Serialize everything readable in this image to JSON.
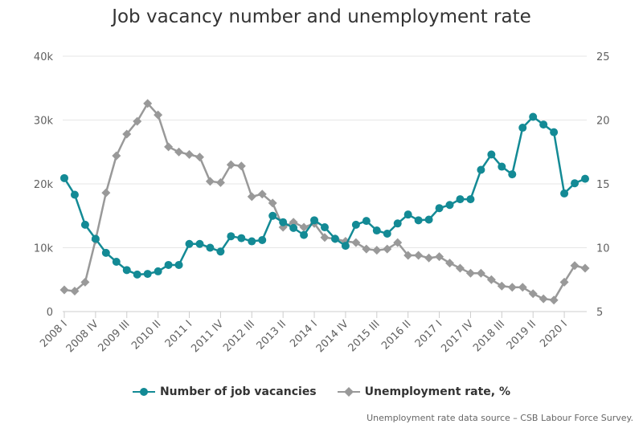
{
  "title": "Job vacancy number and unemployment rate",
  "source_note": "Unemployment rate data source – CSB Labour Force Survey.",
  "colors": {
    "vacancies": "#138a95",
    "unemployment": "#999999",
    "grid": "#e6e6e6"
  },
  "chart_data": {
    "type": "line",
    "title": "Job vacancy number and unemployment rate",
    "x_tick_labels": [
      "2008 I",
      "2008 IV",
      "2009 III",
      "2010 II",
      "2011 I",
      "2011 IV",
      "2012 III",
      "2013 II",
      "2014 I",
      "2014 IV",
      "2015 III",
      "2016 II",
      "2017 I",
      "2017 IV",
      "2018 III",
      "2019 II",
      "2020 I"
    ],
    "left_axis": {
      "ylim": [
        0,
        40000
      ],
      "ticks": [
        "0",
        "10k",
        "20k",
        "30k",
        "40k"
      ]
    },
    "right_axis": {
      "ylim": [
        5,
        25
      ],
      "ticks": [
        "5",
        "10",
        "15",
        "20",
        "25"
      ]
    },
    "grid": true,
    "legend_placement": "bottom-center",
    "series": [
      {
        "name": "Number of job vacancies",
        "axis": "left",
        "marker": "circle",
        "values": [
          20900,
          18300,
          13600,
          11400,
          9200,
          7800,
          6500,
          5800,
          5900,
          6300,
          7300,
          7300,
          10600,
          10600,
          10000,
          9400,
          11800,
          11500,
          11000,
          11200,
          15000,
          14000,
          13100,
          12000,
          14300,
          13200,
          11400,
          10300,
          13600,
          14200,
          12700,
          12200,
          13800,
          15200,
          14300,
          14400,
          16200,
          16700,
          17600,
          17600,
          22200,
          24600,
          22700,
          21500,
          28800,
          30500,
          29300,
          28100,
          18500,
          20100,
          20800
        ]
      },
      {
        "name": "Unemployment rate, %",
        "axis": "right",
        "marker": "diamond",
        "values": [
          6.7,
          6.6,
          7.3,
          10.6,
          14.3,
          17.2,
          18.9,
          19.9,
          21.3,
          20.4,
          17.9,
          17.5,
          17.3,
          17.1,
          15.2,
          15.1,
          16.5,
          16.4,
          14.0,
          14.2,
          13.5,
          11.6,
          12.0,
          11.6,
          11.9,
          10.8,
          10.7,
          10.5,
          10.4,
          9.9,
          9.8,
          9.9,
          10.4,
          9.4,
          9.4,
          9.2,
          9.3,
          8.8,
          8.4,
          8.0,
          8.0,
          7.5,
          7.0,
          6.9,
          6.9,
          6.4,
          6.0,
          5.9,
          7.3,
          8.6,
          8.4
        ]
      }
    ]
  }
}
